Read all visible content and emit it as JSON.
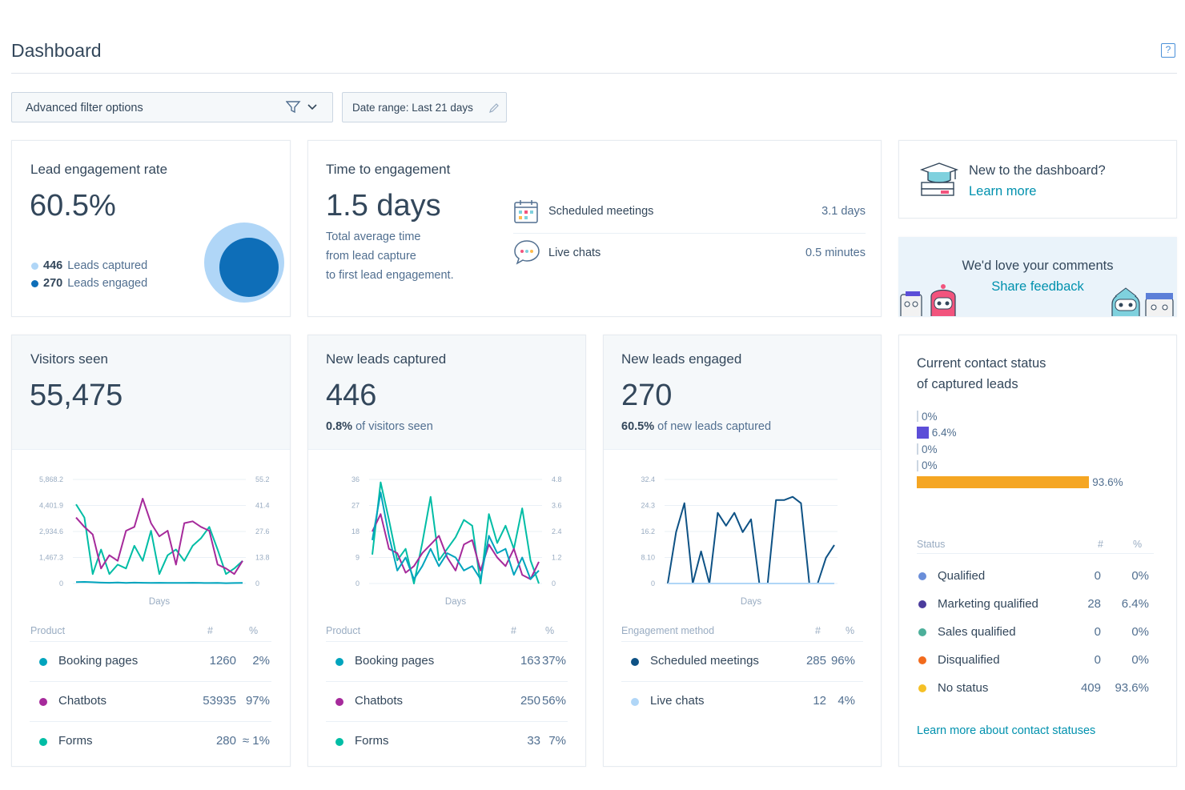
{
  "header": {
    "title": "Dashboard",
    "help_icon": "help-icon"
  },
  "filters": {
    "advanced_label": "Advanced filter options",
    "date_range_label": "Date range: Last 21 days"
  },
  "lead_engagement": {
    "title": "Lead engagement rate",
    "value": "60.5%",
    "captured_count": "446",
    "captured_label": "Leads captured",
    "engaged_count": "270",
    "engaged_label": "Leads engaged",
    "colors": {
      "captured": "#b0d6f7",
      "engaged": "#0e6eb8"
    },
    "engaged_fraction": 0.605
  },
  "time_to_engagement": {
    "title": "Time to engagement",
    "value": "1.5 days",
    "desc_line1": "Total average time",
    "desc_line2": "from lead capture",
    "desc_line3": "to first lead engagement.",
    "rows": [
      {
        "icon": "calendar-icon",
        "label": "Scheduled meetings",
        "value": "3.1 days"
      },
      {
        "icon": "chat-bubble-icon",
        "label": "Live chats",
        "value": "0.5 minutes"
      }
    ]
  },
  "promo": {
    "title": "New to the dashboard?",
    "link": "Learn more",
    "icon": "graduation-cap-icon"
  },
  "feedback": {
    "title": "We'd love your comments",
    "link": "Share feedback"
  },
  "visitors": {
    "title": "Visitors seen",
    "value": "55,475",
    "y_left": [
      "5,868.2",
      "4,401.9",
      "2,934.6",
      "1,467.3",
      "0"
    ],
    "y_right": [
      "55.2",
      "41.4",
      "27.6",
      "13.8",
      "0"
    ],
    "x_label": "Days",
    "table_headers": [
      "Product",
      "#",
      "%"
    ],
    "rows": [
      {
        "color": "#00a4bd",
        "name": "Booking pages",
        "n": "1260",
        "p": "2%"
      },
      {
        "color": "#a62a9b",
        "name": "Chatbots",
        "n": "53935",
        "p": "97%"
      },
      {
        "color": "#00bda5",
        "name": "Forms",
        "n": "280",
        "p": "≈ 1%"
      }
    ]
  },
  "new_leads": {
    "title": "New leads captured",
    "value": "446",
    "sub_bold": "0.8%",
    "sub_rest": " of visitors seen",
    "y_left": [
      "36",
      "27",
      "18",
      "9",
      "0"
    ],
    "y_right": [
      "4.8",
      "3.6",
      "2.4",
      "1.2",
      "0"
    ],
    "x_label": "Days",
    "table_headers": [
      "Product",
      "#",
      "%"
    ],
    "rows": [
      {
        "color": "#00a4bd",
        "name": "Booking pages",
        "n": "163",
        "p": "37%"
      },
      {
        "color": "#a62a9b",
        "name": "Chatbots",
        "n": "250",
        "p": "56%"
      },
      {
        "color": "#00bda5",
        "name": "Forms",
        "n": "33",
        "p": "7%"
      }
    ]
  },
  "leads_engaged": {
    "title": "New leads engaged",
    "value": "270",
    "sub_bold": "60.5%",
    "sub_rest": " of new leads captured",
    "y_left": [
      "32.4",
      "24.3",
      "16.2",
      "8.10",
      "0"
    ],
    "x_label": "Days",
    "table_headers": [
      "Engagement method",
      "#",
      "%"
    ],
    "rows": [
      {
        "color": "#0e5285",
        "name": "Scheduled meetings",
        "n": "285",
        "p": "96%"
      },
      {
        "color": "#b0d6f7",
        "name": "Live chats",
        "n": "12",
        "p": "4%"
      }
    ]
  },
  "contact_status": {
    "title_line1": "Current contact status",
    "title_line2": "of captured leads",
    "bars": [
      {
        "label": "0%",
        "value": 0,
        "color": "#99acc2"
      },
      {
        "label": "6.4%",
        "value": 6.4,
        "color": "#5c4ed8"
      },
      {
        "label": "0%",
        "value": 0,
        "color": "#99acc2"
      },
      {
        "label": "0%",
        "value": 0,
        "color": "#99acc2"
      },
      {
        "label": "93.6%",
        "value": 93.6,
        "color": "#f5a623"
      }
    ],
    "table_headers": [
      "Status",
      "#",
      "%"
    ],
    "rows": [
      {
        "color": "#6a8ed9",
        "name": "Qualified",
        "n": "0",
        "p": "0%"
      },
      {
        "color": "#4b3c9c",
        "name": "Marketing qualified",
        "n": "28",
        "p": "6.4%"
      },
      {
        "color": "#4caf9a",
        "name": "Sales qualified",
        "n": "0",
        "p": "0%"
      },
      {
        "color": "#f26b1d",
        "name": "Disqualified",
        "n": "0",
        "p": "0%"
      },
      {
        "color": "#f5c026",
        "name": "No status",
        "n": "409",
        "p": "93.6%"
      }
    ],
    "link": "Learn more about contact statuses"
  },
  "chart_data": [
    {
      "type": "line",
      "ylim": [
        0,
        5868.2
      ],
      "y2lim": [
        0,
        55.2
      ],
      "xlabel": "Days",
      "series": [
        {
          "color": "#00bda5",
          "axis": "right",
          "values": [
            42,
            35,
            5,
            18,
            5,
            10,
            8,
            20,
            12,
            28,
            5,
            15,
            18,
            12,
            20,
            24,
            30,
            18,
            5,
            8,
            12
          ]
        },
        {
          "color": "#a62a9b",
          "axis": "right",
          "values": [
            35,
            30,
            26,
            8,
            15,
            12,
            28,
            30,
            45,
            32,
            25,
            28,
            10,
            32,
            33,
            30,
            28,
            10,
            8,
            5,
            12
          ]
        },
        {
          "color": "#00a4bd",
          "axis": "left",
          "values": [
            80,
            90,
            70,
            50,
            40,
            60,
            30,
            50,
            40,
            30,
            40,
            30,
            35,
            30,
            40,
            30,
            25,
            30,
            20,
            25,
            30
          ]
        }
      ]
    },
    {
      "type": "line",
      "ylim": [
        0,
        36
      ],
      "y2lim": [
        0,
        4.8
      ],
      "xlabel": "Days",
      "series": [
        {
          "color": "#00bda5",
          "axis": "left",
          "values": [
            10,
            35,
            22,
            8,
            12,
            0,
            14,
            30,
            8,
            12,
            16,
            22,
            20,
            0,
            24,
            14,
            20,
            12,
            26,
            8,
            0
          ]
        },
        {
          "color": "#a62a9b",
          "axis": "right",
          "values": [
            2.4,
            3.2,
            1.6,
            1.4,
            0.5,
            0.8,
            1.4,
            1.8,
            2.2,
            1.2,
            0.6,
            1.8,
            2.0,
            0.6,
            1.8,
            1.2,
            0.8,
            1.6,
            0.4,
            0.2,
            1.0
          ]
        },
        {
          "color": "#00a4bd",
          "axis": "right",
          "values": [
            2.0,
            4.2,
            2.2,
            0.6,
            1.2,
            0.2,
            0.8,
            1.6,
            0.8,
            1.4,
            1.2,
            0.6,
            0.8,
            0.2,
            2.2,
            1.4,
            1.6,
            0.4,
            1.2,
            0.2,
            0.6
          ]
        }
      ]
    },
    {
      "type": "line",
      "ylim": [
        0,
        32.4
      ],
      "xlabel": "Days",
      "series": [
        {
          "color": "#0e5285",
          "axis": "left",
          "values": [
            0,
            16,
            25,
            0,
            10,
            0,
            22,
            18,
            22,
            16,
            20,
            0,
            0,
            26,
            26,
            27,
            25,
            0,
            0,
            8,
            12
          ]
        },
        {
          "color": "#b0d6f7",
          "axis": "left",
          "values": [
            0,
            0,
            0,
            0,
            0,
            0,
            0,
            0,
            0,
            0,
            0,
            0,
            0,
            0,
            0,
            0,
            0,
            0,
            0,
            0,
            0
          ]
        }
      ]
    }
  ]
}
